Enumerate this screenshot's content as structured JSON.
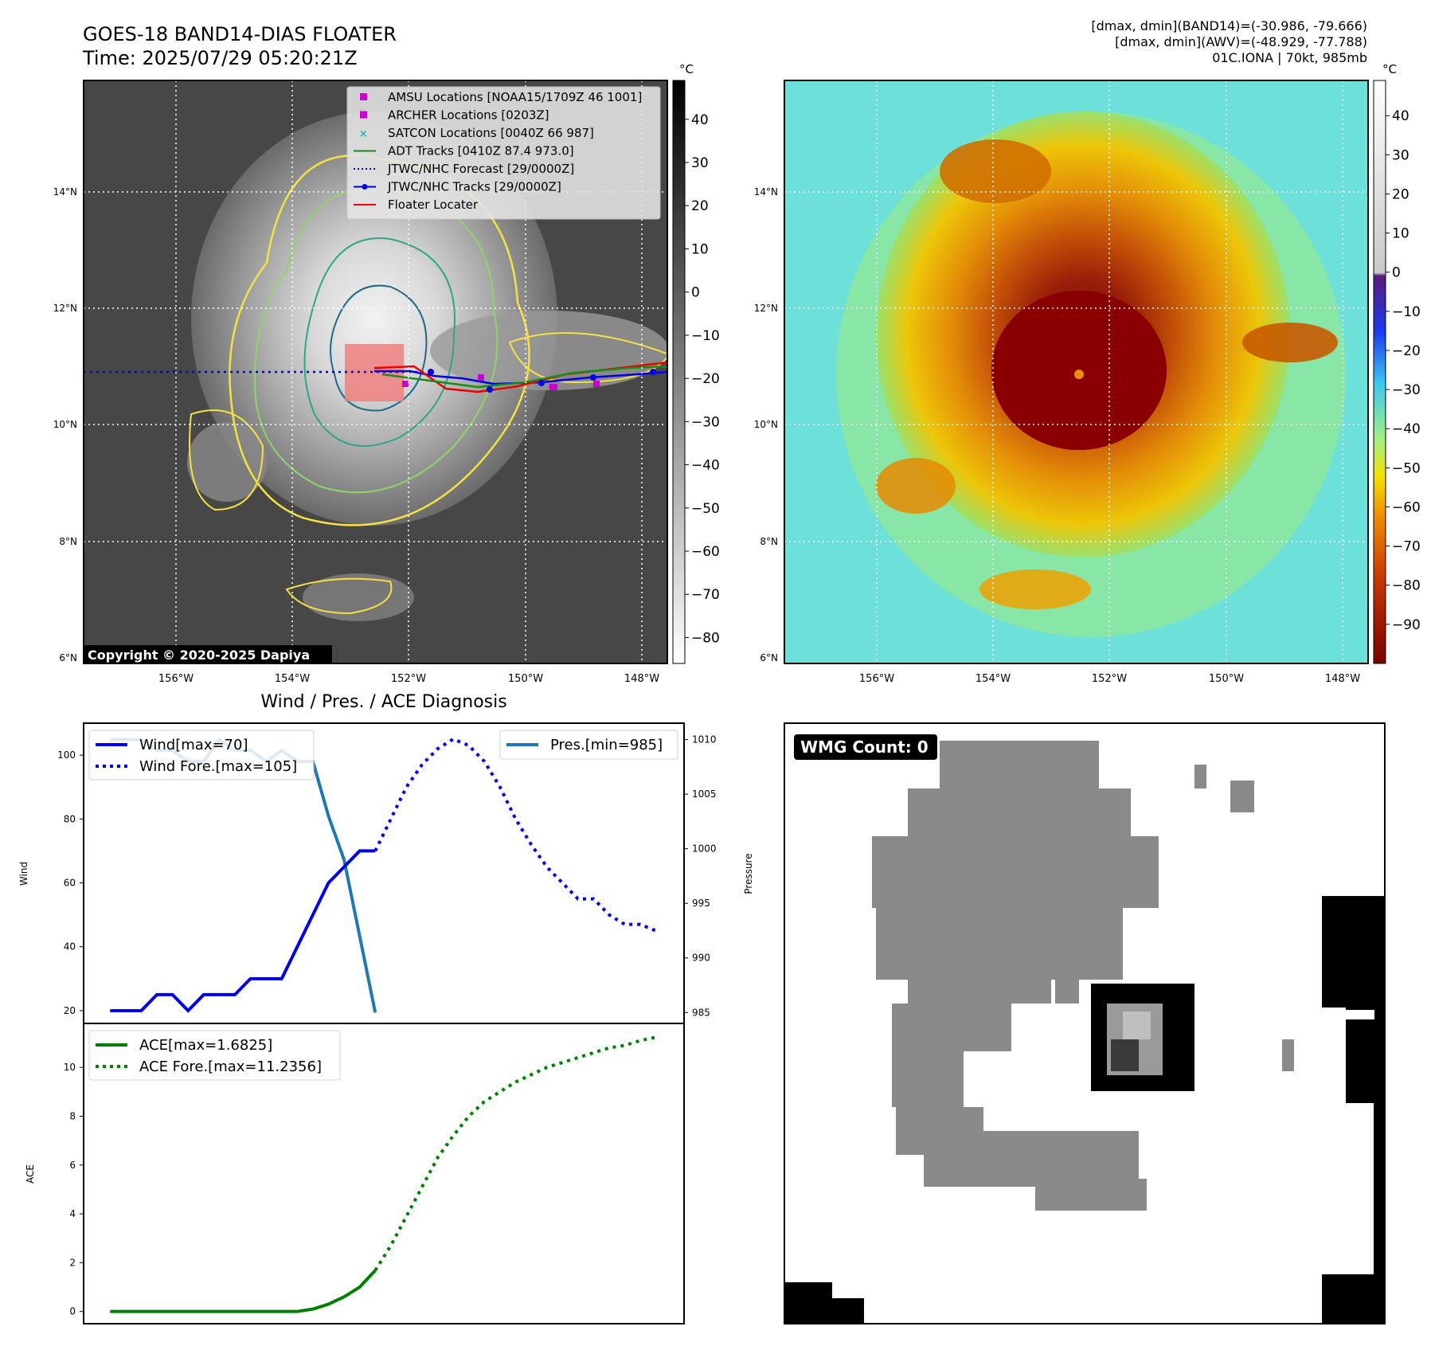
{
  "header": {
    "title": "GOES-18 BAND14-DIAS FLOATER",
    "time": "Time: 2025/07/29 05:20:21Z",
    "stats_band14": "[dmax, dmin](BAND14)=(-30.986, -79.666)",
    "stats_awv": "[dmax, dmin](AWV)=(-48.929, -77.788)",
    "storm_info": "01C.IONA | 70kt, 985mb"
  },
  "map": {
    "lat_labels": [
      "14°N",
      "12°N",
      "10°N",
      "8°N",
      "6°N"
    ],
    "lon_labels": [
      "156°W",
      "154°W",
      "152°W",
      "150°W",
      "148°W"
    ],
    "copyright": "Copyright © 2020-2025 Dapiya",
    "colorbar_unit": "°C",
    "colorbar_left_ticks": [
      "40",
      "30",
      "20",
      "10",
      "0",
      "−10",
      "−20",
      "−30",
      "−40",
      "−50",
      "−60",
      "−70",
      "−80"
    ],
    "colorbar_right_ticks": [
      "40",
      "30",
      "20",
      "10",
      "0",
      "−10",
      "−20",
      "−30",
      "−40",
      "−50",
      "−60",
      "−70",
      "−80",
      "−90"
    ],
    "legend": [
      {
        "label": "AMSU Locations [NOAA15/1709Z 46 1001]",
        "color": "#cc00cc",
        "kind": "square"
      },
      {
        "label": "ARCHER Locations [0203Z]",
        "color": "#cc00cc",
        "kind": "square"
      },
      {
        "label": "SATCON Locations [0040Z 66 987]",
        "color": "#1fb5b5",
        "kind": "cross"
      },
      {
        "label": "ADT Tracks [0410Z 87.4 973.0]",
        "color": "#1a8a1a",
        "kind": "line"
      },
      {
        "label": "JTWC/NHC Forecast [29/0000Z]",
        "color": "#0000ee",
        "kind": "dotted"
      },
      {
        "label": "JTWC/NHC Tracks [29/0000Z]",
        "color": "#0000ee",
        "kind": "dotline"
      },
      {
        "label": "Floater Locater",
        "color": "#ee0000",
        "kind": "line"
      }
    ]
  },
  "diagnosis": {
    "title": "Wind / Pres. / ACE Diagnosis",
    "wind_ylabel": "Wind",
    "pres_ylabel": "Pressure",
    "ace_ylabel": "ACE",
    "legend_wind": "Wind[max=70]",
    "legend_wind_fore": "Wind Fore.[max=105]",
    "legend_pres": "Pres.[min=985]",
    "legend_ace": "ACE[max=1.6825]",
    "legend_ace_fore": "ACE Fore.[max=11.2356]",
    "wmg": "WMG Count: 0"
  },
  "chart_data": [
    {
      "type": "line",
      "ylabel": "Wind",
      "ylim": [
        16,
        110
      ],
      "x_index_range": [
        0,
        36
      ],
      "yticks": [
        20,
        40,
        60,
        80,
        100
      ],
      "series": [
        {
          "name": "Wind[max=70]",
          "color": "#0000ee",
          "style": "solid",
          "x": [
            0,
            1,
            2,
            3,
            4,
            5,
            6,
            7,
            8,
            9,
            10,
            11,
            12,
            13,
            14,
            15,
            16,
            17
          ],
          "values": [
            20,
            20,
            20,
            25,
            25,
            20,
            25,
            25,
            25,
            30,
            30,
            30,
            40,
            50,
            60,
            65,
            70,
            70
          ]
        },
        {
          "name": "Wind Fore.[max=105]",
          "color": "#0000ee",
          "style": "dotted",
          "x": [
            17,
            18,
            19,
            20,
            21,
            22,
            23,
            24,
            25,
            26,
            27,
            28,
            29,
            30,
            31,
            32,
            33,
            34,
            35
          ],
          "values": [
            70,
            80,
            90,
            97,
            102,
            105,
            103,
            98,
            90,
            80,
            72,
            65,
            60,
            55,
            55,
            50,
            47,
            47,
            45
          ]
        }
      ]
    },
    {
      "type": "line",
      "ylabel": "Pressure",
      "ylim": [
        984,
        1011.5
      ],
      "yticks": [
        985,
        990,
        995,
        1000,
        1005,
        1010
      ],
      "series": [
        {
          "name": "Pres.[min=985]",
          "color": "#1f77b4",
          "style": "solid",
          "x": [
            0,
            1,
            2,
            3,
            4,
            5,
            6,
            7,
            8,
            9,
            10,
            11,
            12,
            13,
            14,
            15,
            16,
            17
          ],
          "values": [
            1010,
            1010,
            1010,
            1009,
            1009,
            1008,
            1008,
            1010,
            1009,
            1009,
            1008,
            1009,
            1008,
            1008,
            1003,
            999,
            992,
            985
          ]
        }
      ]
    },
    {
      "type": "line",
      "ylabel": "ACE",
      "ylim": [
        -0.5,
        11.8
      ],
      "yticks": [
        0,
        2,
        4,
        6,
        8,
        10
      ],
      "series": [
        {
          "name": "ACE[max=1.6825]",
          "color": "#008000",
          "style": "solid",
          "x": [
            0,
            1,
            2,
            3,
            4,
            5,
            6,
            7,
            8,
            9,
            10,
            11,
            12,
            13,
            14,
            15,
            16,
            17
          ],
          "values": [
            0,
            0,
            0,
            0,
            0,
            0,
            0,
            0,
            0,
            0,
            0,
            0,
            0,
            0.1,
            0.3,
            0.6,
            1.0,
            1.6825
          ]
        },
        {
          "name": "ACE Fore.[max=11.2356]",
          "color": "#008000",
          "style": "dotted",
          "x": [
            17,
            18,
            19,
            20,
            21,
            22,
            23,
            24,
            25,
            26,
            27,
            28,
            29,
            30,
            31,
            32,
            33,
            34,
            35
          ],
          "values": [
            1.6825,
            2.7,
            3.9,
            5.1,
            6.3,
            7.2,
            8.0,
            8.6,
            9.0,
            9.4,
            9.7,
            10.0,
            10.2,
            10.4,
            10.6,
            10.8,
            10.9,
            11.1,
            11.2356
          ]
        }
      ]
    }
  ]
}
